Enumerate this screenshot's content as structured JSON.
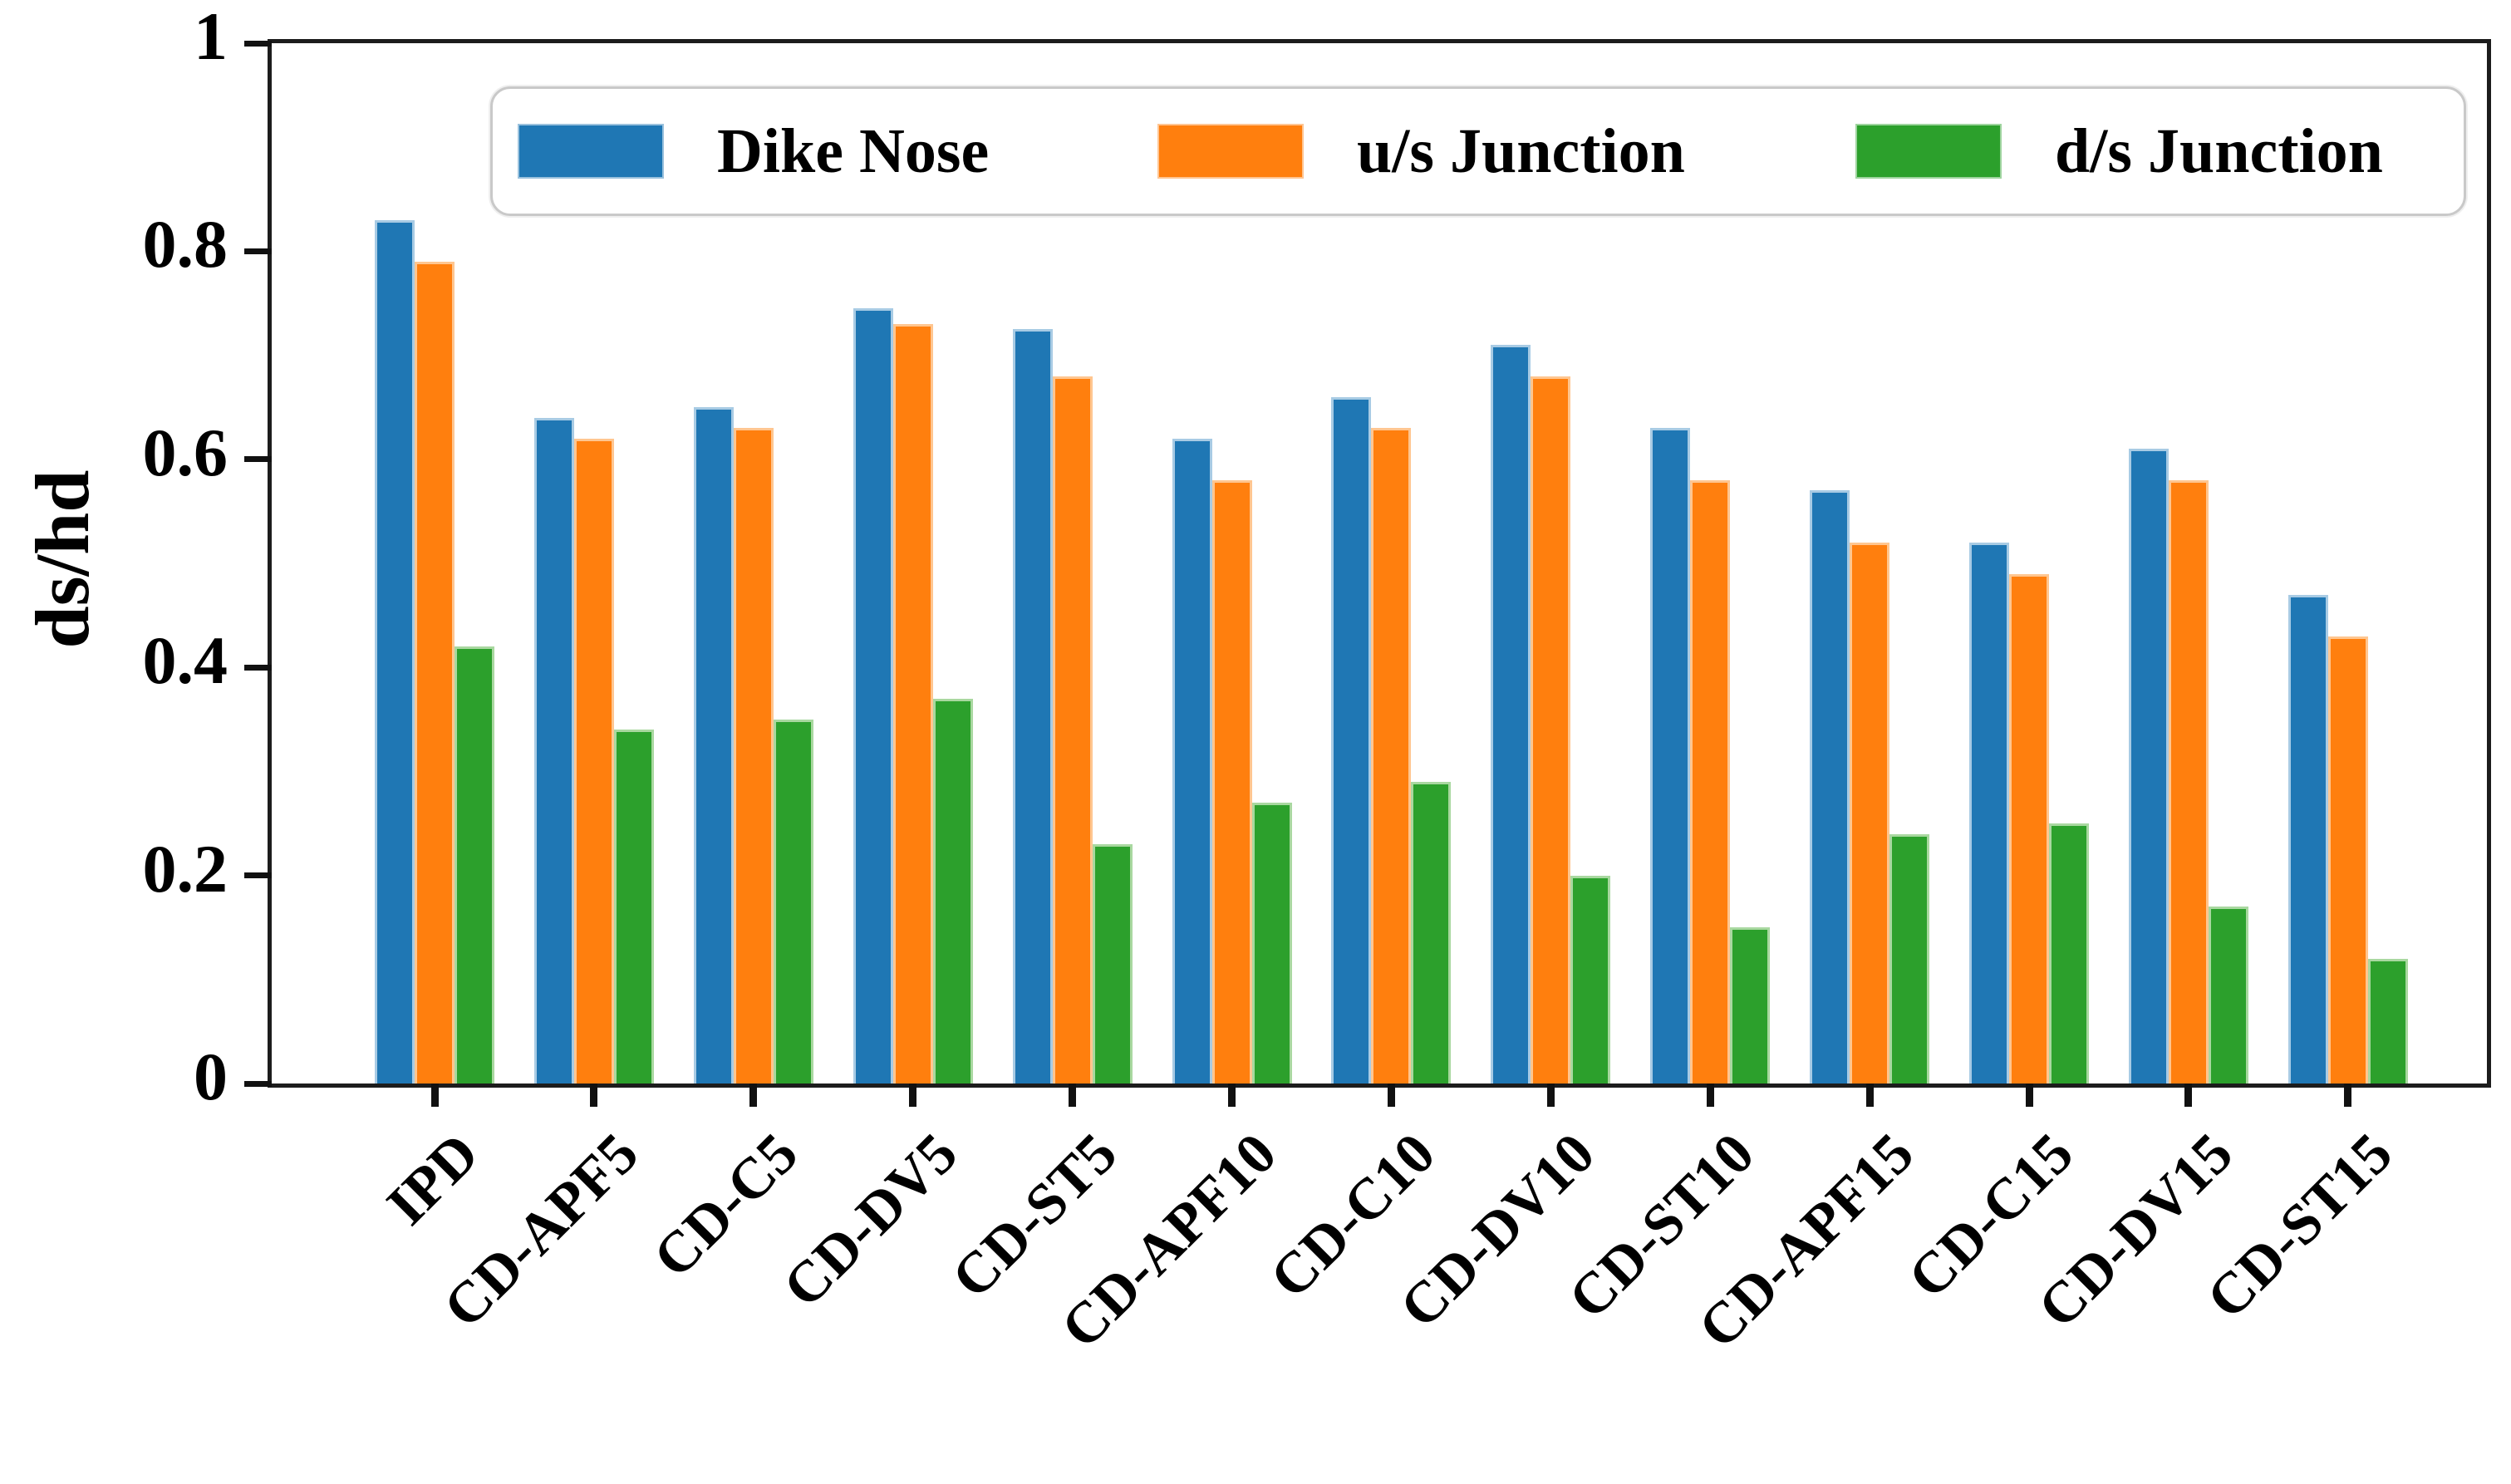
{
  "figure": {
    "kind": "static grouped bar chart (matplotlib-style figure)",
    "background": "#ffffff"
  },
  "chart_data": {
    "type": "bar",
    "title": "",
    "xlabel": "",
    "ylabel": "ds/hd",
    "ylim": [
      0,
      1
    ],
    "grid": false,
    "legend_position": "upper center, inside plot, horizontal row",
    "yticks": {
      "values": [
        0,
        0.2,
        0.4,
        0.6,
        0.8,
        1
      ],
      "labels": [
        "0",
        "0.2",
        "0.4",
        "0.6",
        "0.8",
        "1"
      ]
    },
    "categories": [
      "IPD",
      "CD-APF5",
      "CD-C5",
      "CD-DV5",
      "CD-ST5",
      "CD-APF10",
      "CD-C10",
      "CD-DV10",
      "CD-ST10",
      "CD-APF15",
      "CD-C15",
      "CD-DV15",
      "CD-ST15"
    ],
    "series": [
      {
        "name": "Dike Nose",
        "color": "#1f77b4",
        "edge_color": "#a8cbe4",
        "values": [
          0.83,
          0.64,
          0.65,
          0.745,
          0.725,
          0.62,
          0.66,
          0.71,
          0.63,
          0.57,
          0.52,
          0.61,
          0.47
        ]
      },
      {
        "name": "u/s Junction",
        "color": "#ff7f0e",
        "edge_color": "#ffc690",
        "values": [
          0.79,
          0.62,
          0.63,
          0.73,
          0.68,
          0.58,
          0.63,
          0.68,
          0.58,
          0.52,
          0.49,
          0.58,
          0.43
        ]
      },
      {
        "name": "d/s Junction",
        "color": "#2ca02c",
        "edge_color": "#a9d8a0",
        "values": [
          0.42,
          0.34,
          0.35,
          0.37,
          0.23,
          0.27,
          0.29,
          0.2,
          0.15,
          0.24,
          0.25,
          0.17,
          0.12
        ]
      }
    ]
  }
}
